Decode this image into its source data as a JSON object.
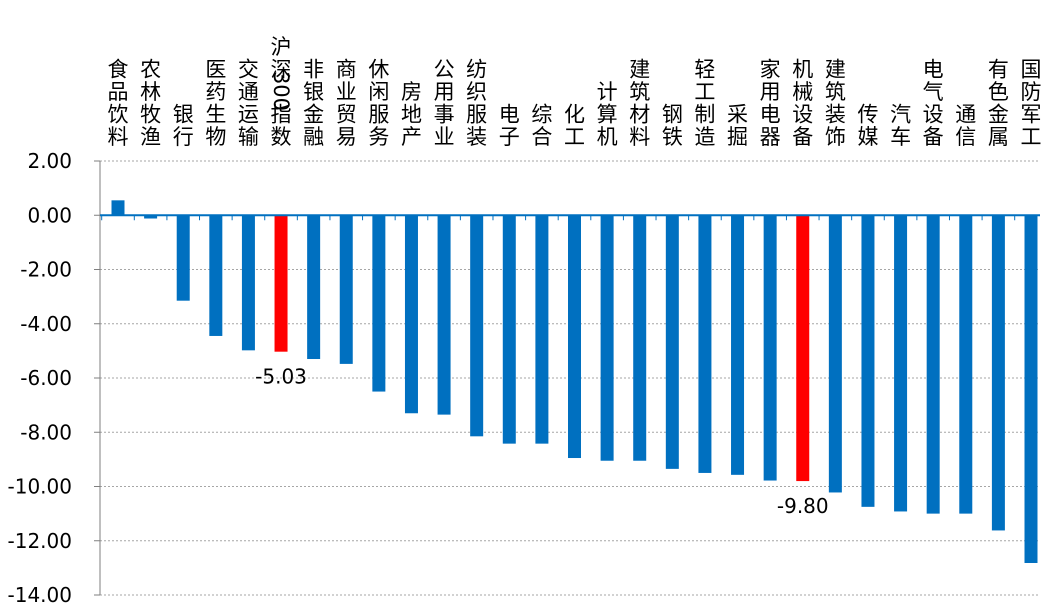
{
  "chart_data": {
    "type": "bar",
    "title": "",
    "xlabel": "",
    "ylabel": "",
    "ylim": [
      -14,
      2
    ],
    "yticks": [
      "2.00",
      "0.00",
      "-2.00",
      "-4.00",
      "-6.00",
      "-8.00",
      "-10.00",
      "-12.00",
      "-14.00"
    ],
    "categories": [
      "食品饮料",
      "农林牧渔",
      "银行",
      "医药生物",
      "交通运输",
      "沪深300指数",
      "非银金融",
      "商业贸易",
      "休闲服务",
      "房地产",
      "公用事业",
      "纺织服装",
      "电子",
      "综合",
      "化工",
      "计算机",
      "建筑材料",
      "钢铁",
      "轻工制造",
      "采掘",
      "家用电器",
      "机械设备",
      "建筑装饰",
      "传媒",
      "汽车",
      "电气设备",
      "通信",
      "有色金属",
      "国防军工"
    ],
    "values": [
      0.55,
      -0.12,
      -3.15,
      -4.45,
      -4.98,
      -5.03,
      -5.3,
      -5.48,
      -6.5,
      -7.3,
      -7.35,
      -8.15,
      -8.42,
      -8.42,
      -8.95,
      -9.05,
      -9.05,
      -9.35,
      -9.5,
      -9.57,
      -9.78,
      -9.8,
      -10.22,
      -10.75,
      -10.92,
      -11.0,
      -11.0,
      -11.62,
      -12.82
    ],
    "highlighted": [
      "沪深300指数",
      "机械设备"
    ],
    "data_labels": [
      {
        "category": "沪深300指数",
        "text": "-5.03"
      },
      {
        "category": "机械设备",
        "text": "-9.80"
      }
    ],
    "colors": {
      "bar": "#0070C0",
      "highlight": "#FF0000",
      "axis": "#0070C0",
      "grid": "#A6A6A6"
    },
    "grid": true,
    "legend": "none"
  }
}
